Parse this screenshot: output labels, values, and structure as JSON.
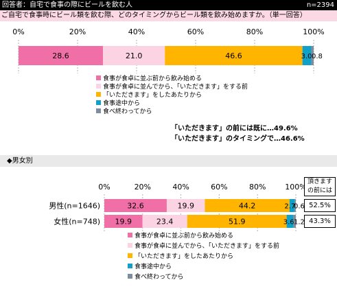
{
  "header": {
    "respondents": "回答者：自宅で食事の際にビールを飲む人",
    "n": "n=2394"
  },
  "question": "ご自宅で食事時にビール類を飲む際、どのタイミングからビール類を飲み始めますか。（単一回答）",
  "colors": {
    "s1": "#f06fa6",
    "s2": "#fbd3e3",
    "s3": "#ffb400",
    "s4": "#10a0c8",
    "s5": "#7f8c9d"
  },
  "notes": [
    "「いただきます」の前には既に…49.6%",
    "「いただきます」のタイミングで…46.6%"
  ],
  "section_title": "◆男女別",
  "side_header": "頂きます\nの前には",
  "side_values": [
    "52.5%",
    "43.3%"
  ],
  "chart_data": [
    {
      "type": "bar",
      "orientation": "horizontal",
      "stacked": true,
      "xlim": [
        0,
        100
      ],
      "ticks": [
        "0%",
        "20%",
        "40%",
        "60%",
        "80%",
        "100%"
      ],
      "categories": [
        ""
      ],
      "series": [
        {
          "name": "食事が食卓に並ぶ前から飲み始める",
          "values": [
            28.6
          ]
        },
        {
          "name": "食事が食卓に並んでから、「いただきます」をする前",
          "values": [
            21.0
          ]
        },
        {
          "name": "「いただきます」をしたあたりから",
          "values": [
            46.6
          ]
        },
        {
          "name": "食事途中から",
          "values": [
            3.0
          ]
        },
        {
          "name": "食べ終わってから",
          "values": [
            0.8
          ]
        }
      ],
      "labels": [
        [
          "28.6",
          "21.0",
          "46.6",
          "3.0",
          "0.8"
        ]
      ],
      "legend": "below"
    },
    {
      "type": "bar",
      "orientation": "horizontal",
      "stacked": true,
      "xlim": [
        0,
        100
      ],
      "ticks": [
        "0%",
        "20%",
        "40%",
        "60%",
        "80%",
        "100%"
      ],
      "categories": [
        "男性(n=1646)",
        "女性(n=748)"
      ],
      "series": [
        {
          "name": "食事が食卓に並ぶ前から飲み始める",
          "values": [
            32.6,
            19.9
          ]
        },
        {
          "name": "食事が食卓に並んでから、「いただきます」をする前",
          "values": [
            19.9,
            23.4
          ]
        },
        {
          "name": "「いただきます」をしたあたりから",
          "values": [
            44.2,
            51.9
          ]
        },
        {
          "name": "食事途中から",
          "values": [
            2.7,
            3.6
          ]
        },
        {
          "name": "食べ終わってから",
          "values": [
            0.6,
            1.2
          ]
        }
      ],
      "labels": [
        [
          "32.6",
          "19.9",
          "44.2",
          "2.7",
          "0.6"
        ],
        [
          "19.9",
          "23.4",
          "51.9",
          "3.6",
          "1.2"
        ]
      ],
      "legend": "below"
    }
  ]
}
